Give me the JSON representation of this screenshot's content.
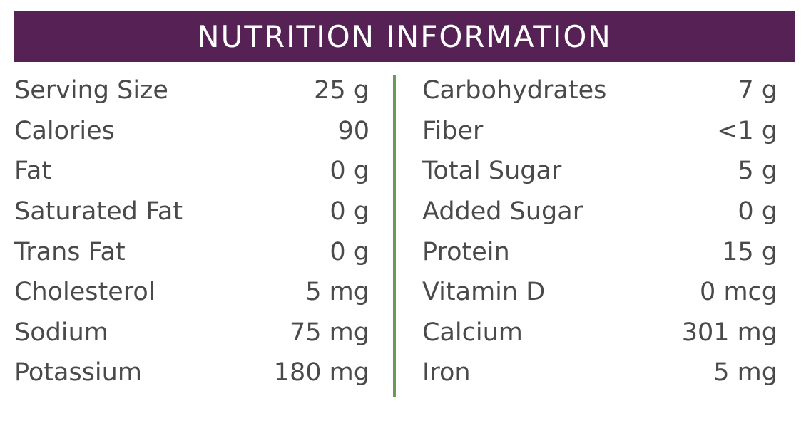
{
  "title": "NUTRITION INFORMATION",
  "accent_color": "#562256",
  "divider_color": "#6a9a5a",
  "left": [
    {
      "label": "Serving Size",
      "value": "25 g"
    },
    {
      "label": "Calories",
      "value": "90"
    },
    {
      "label": "Fat",
      "value": "0 g"
    },
    {
      "label": "Saturated Fat",
      "value": "0 g"
    },
    {
      "label": "Trans Fat",
      "value": "0 g"
    },
    {
      "label": "Cholesterol",
      "value": "5 mg"
    },
    {
      "label": "Sodium",
      "value": "75 mg"
    },
    {
      "label": "Potassium",
      "value": "180 mg"
    }
  ],
  "right": [
    {
      "label": "Carbohydrates",
      "value": "7 g"
    },
    {
      "label": "Fiber",
      "value": "<1 g"
    },
    {
      "label": "Total Sugar",
      "value": "5 g"
    },
    {
      "label": "Added Sugar",
      "value": "0 g"
    },
    {
      "label": "Protein",
      "value": "15 g"
    },
    {
      "label": "Vitamin D",
      "value": "0 mcg"
    },
    {
      "label": "Calcium",
      "value": "301 mg"
    },
    {
      "label": "Iron",
      "value": "5 mg"
    }
  ]
}
